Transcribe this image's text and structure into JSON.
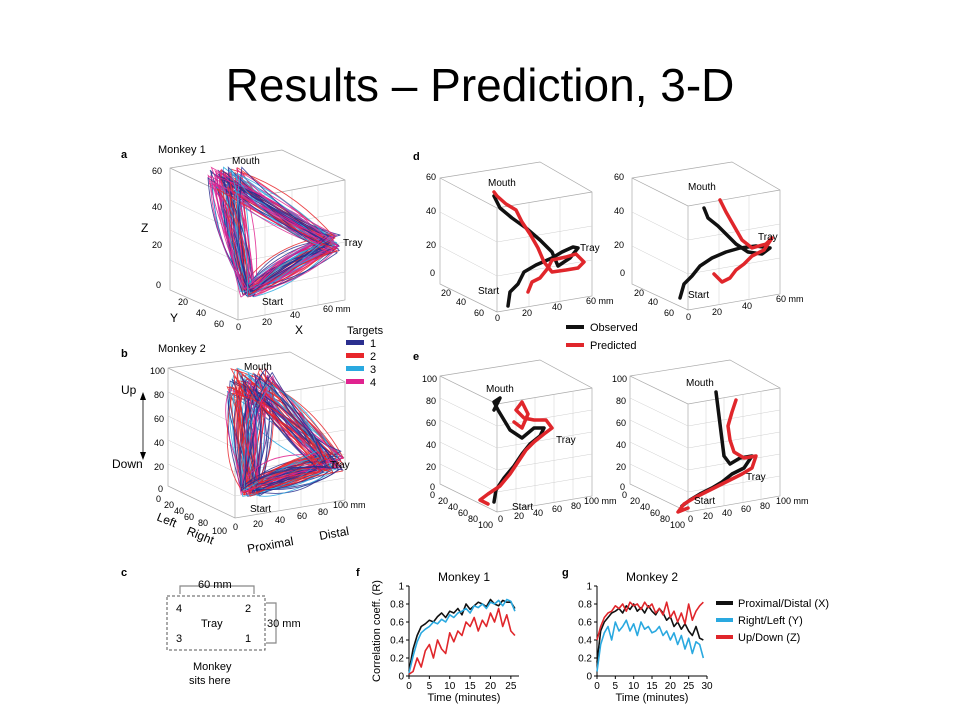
{
  "slide": {
    "title": "Results – Prediction, 3-D"
  },
  "panel_a": {
    "letter": "a",
    "title": "Monkey 1",
    "z_ticks": [
      "0",
      "20",
      "40",
      "60"
    ],
    "y_ticks": [
      "20",
      "40",
      "60"
    ],
    "x_ticks": [
      "0",
      "20",
      "40",
      "60 mm"
    ],
    "z_label": "Z",
    "y_label": "Y",
    "x_label": "X",
    "mouth": "Mouth",
    "tray": "Tray",
    "start": "Start"
  },
  "targets_legend": {
    "title": "Targets",
    "items": [
      {
        "label": "1",
        "color": "#2b2f8f"
      },
      {
        "label": "2",
        "color": "#e8262b"
      },
      {
        "label": "3",
        "color": "#2aa9e0"
      },
      {
        "label": "4",
        "color": "#e0238f"
      }
    ]
  },
  "panel_b": {
    "letter": "b",
    "title": "Monkey 2",
    "z_ticks": [
      "0",
      "20",
      "40",
      "60",
      "80",
      "100"
    ],
    "y_ticks": [
      "0",
      "20",
      "40",
      "60",
      "80",
      "100"
    ],
    "x_ticks": [
      "0",
      "20",
      "40",
      "60",
      "80",
      "100 mm"
    ],
    "up": "Up",
    "down": "Down",
    "left": "Left",
    "right": "Right",
    "proximal": "Proximal",
    "distal": "Distal",
    "mouth": "Mouth",
    "tray": "Tray",
    "start": "Start"
  },
  "panel_c": {
    "letter": "c",
    "width": "60 mm",
    "height": "30 mm",
    "tray": "Tray",
    "t4": "4",
    "t2": "2",
    "t3": "3",
    "t1": "1",
    "monkey": "Monkey",
    "sits": "sits here"
  },
  "panel_d": {
    "letter": "d",
    "z_ticks": [
      "0",
      "20",
      "40",
      "60"
    ],
    "y_ticks": [
      "20",
      "40",
      "60"
    ],
    "x_ticks": [
      "0",
      "20",
      "40",
      "60 mm"
    ],
    "mouth": "Mouth",
    "tray": "Tray",
    "start": "Start"
  },
  "panel_e": {
    "letter": "e",
    "z_ticks": [
      "0",
      "20",
      "40",
      "60",
      "80",
      "100"
    ],
    "y_ticks": [
      "0",
      "20",
      "40",
      "60",
      "80",
      "100"
    ],
    "x_ticks": [
      "0",
      "20",
      "40",
      "60",
      "80",
      "100 mm"
    ],
    "mouth": "Mouth",
    "tray": "Tray",
    "start": "Start"
  },
  "trajectory_legend": {
    "items": [
      {
        "label": "Observed",
        "color": "#111111"
      },
      {
        "label": "Predicted",
        "color": "#e0262b"
      }
    ]
  },
  "chart_data": [
    {
      "type": "line",
      "panel": "f",
      "title": "Monkey 1",
      "xlabel": "Time (minutes)",
      "ylabel": "Correlation coeff. (R)",
      "xlim": [
        0,
        27
      ],
      "ylim": [
        0,
        1
      ],
      "x_ticks": [
        "0",
        "5",
        "10",
        "15",
        "20",
        "25"
      ],
      "y_ticks": [
        "0",
        "0.2",
        "0.4",
        "0.6",
        "0.8",
        "1"
      ],
      "x": [
        0,
        1,
        2,
        3,
        4,
        5,
        6,
        7,
        8,
        9,
        10,
        11,
        12,
        13,
        14,
        15,
        16,
        17,
        18,
        19,
        20,
        21,
        22,
        23,
        24,
        25,
        26
      ],
      "series": [
        {
          "name": "Proximal/Distal (X)",
          "color": "#111111",
          "values": [
            0.05,
            0.3,
            0.45,
            0.55,
            0.58,
            0.62,
            0.6,
            0.66,
            0.7,
            0.65,
            0.72,
            0.7,
            0.75,
            0.68,
            0.8,
            0.74,
            0.78,
            0.82,
            0.8,
            0.77,
            0.85,
            0.8,
            0.78,
            0.84,
            0.82,
            0.82,
            0.75
          ]
        },
        {
          "name": "Right/Left (Y)",
          "color": "#2aa9e0",
          "values": [
            0.03,
            0.22,
            0.38,
            0.48,
            0.52,
            0.55,
            0.6,
            0.58,
            0.63,
            0.6,
            0.68,
            0.65,
            0.7,
            0.72,
            0.75,
            0.7,
            0.78,
            0.76,
            0.8,
            0.75,
            0.82,
            0.8,
            0.84,
            0.78,
            0.85,
            0.83,
            0.72
          ]
        },
        {
          "name": "Up/Down (Z)",
          "color": "#e0262b",
          "values": [
            0.02,
            0.05,
            0.2,
            0.1,
            0.28,
            0.35,
            0.2,
            0.4,
            0.3,
            0.25,
            0.48,
            0.38,
            0.5,
            0.45,
            0.6,
            0.55,
            0.65,
            0.5,
            0.62,
            0.55,
            0.7,
            0.6,
            0.75,
            0.55,
            0.68,
            0.5,
            0.45
          ]
        }
      ]
    },
    {
      "type": "line",
      "panel": "g",
      "title": "Monkey 2",
      "xlabel": "Time (minutes)",
      "ylabel": "",
      "xlim": [
        0,
        30
      ],
      "ylim": [
        0,
        1
      ],
      "x_ticks": [
        "0",
        "5",
        "10",
        "15",
        "20",
        "25",
        "30"
      ],
      "y_ticks": [
        "0",
        "0.2",
        "0.4",
        "0.6",
        "0.8",
        "1"
      ],
      "x": [
        0,
        1,
        2,
        3,
        4,
        5,
        6,
        7,
        8,
        9,
        10,
        11,
        12,
        13,
        14,
        15,
        16,
        17,
        18,
        19,
        20,
        21,
        22,
        23,
        24,
        25,
        26,
        27,
        28,
        29
      ],
      "series": [
        {
          "name": "Proximal/Distal (X)",
          "color": "#111111",
          "values": [
            0.15,
            0.5,
            0.6,
            0.65,
            0.7,
            0.72,
            0.75,
            0.7,
            0.78,
            0.74,
            0.8,
            0.72,
            0.76,
            0.7,
            0.78,
            0.72,
            0.68,
            0.75,
            0.7,
            0.62,
            0.66,
            0.55,
            0.6,
            0.52,
            0.58,
            0.5,
            0.45,
            0.55,
            0.42,
            0.4
          ]
        },
        {
          "name": "Right/Left (Y)",
          "color": "#2aa9e0",
          "values": [
            0.05,
            0.35,
            0.48,
            0.55,
            0.4,
            0.6,
            0.5,
            0.55,
            0.62,
            0.5,
            0.58,
            0.45,
            0.6,
            0.52,
            0.55,
            0.48,
            0.5,
            0.55,
            0.45,
            0.5,
            0.4,
            0.48,
            0.35,
            0.45,
            0.3,
            0.42,
            0.25,
            0.38,
            0.35,
            0.2
          ]
        },
        {
          "name": "Up/Down (Z)",
          "color": "#e0262b",
          "values": [
            0.4,
            0.55,
            0.65,
            0.7,
            0.72,
            0.78,
            0.75,
            0.8,
            0.72,
            0.82,
            0.78,
            0.8,
            0.74,
            0.82,
            0.76,
            0.8,
            0.7,
            0.75,
            0.68,
            0.82,
            0.65,
            0.72,
            0.6,
            0.7,
            0.58,
            0.8,
            0.62,
            0.72,
            0.78,
            0.82
          ]
        }
      ]
    }
  ]
}
